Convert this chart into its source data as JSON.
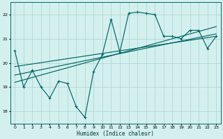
{
  "xlabel": "Humidex (Indice chaleur)",
  "bg_color": "#d4f0ee",
  "grid_color": "#b0d8d4",
  "line_color": "#006666",
  "xlim": [
    -0.5,
    23.5
  ],
  "ylim": [
    17.5,
    22.5
  ],
  "yticks": [
    18,
    19,
    20,
    21,
    22
  ],
  "xtick_labels": [
    "0",
    "1",
    "2",
    "3",
    "4",
    "5",
    "6",
    "7",
    "8",
    "9",
    "10",
    "11",
    "12",
    "13",
    "14",
    "15",
    "16",
    "17",
    "18",
    "19",
    "20",
    "21",
    "22",
    "23"
  ],
  "main_series_x": [
    0,
    1,
    2,
    3,
    4,
    5,
    6,
    7,
    8,
    9,
    10,
    11,
    12,
    13,
    14,
    15,
    16,
    17,
    18,
    19,
    20,
    21,
    22,
    23
  ],
  "main_series_y": [
    20.5,
    19.0,
    19.7,
    19.0,
    18.55,
    19.25,
    19.15,
    18.2,
    17.75,
    19.65,
    20.35,
    21.8,
    20.45,
    22.05,
    22.1,
    22.05,
    22.0,
    21.1,
    21.1,
    21.0,
    21.35,
    21.35,
    20.6,
    21.1
  ],
  "trend1_x": [
    0,
    23
  ],
  "trend1_y": [
    19.5,
    21.2
  ],
  "trend2_x": [
    0,
    23
  ],
  "trend2_y": [
    19.85,
    21.1
  ],
  "trend3_x": [
    0,
    23
  ],
  "trend3_y": [
    19.2,
    21.5
  ]
}
